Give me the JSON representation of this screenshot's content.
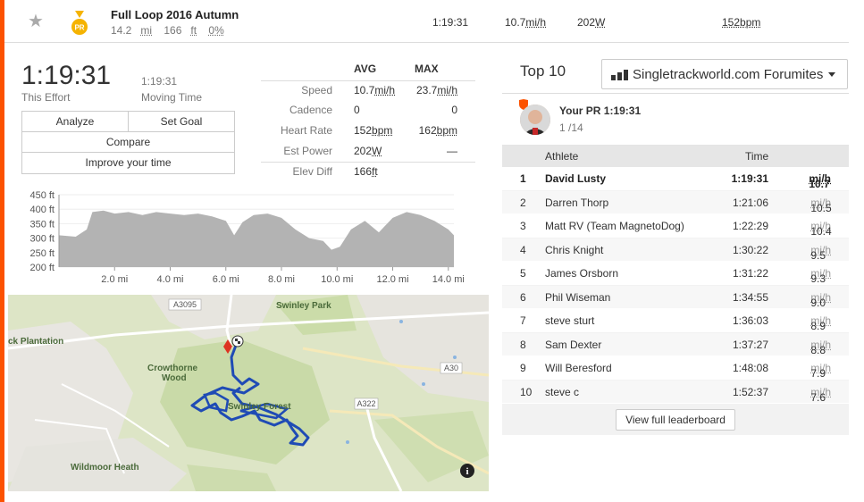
{
  "colors": {
    "accent": "#fc5200",
    "route": "#1f4bb5",
    "elevation": "#b3b3b3",
    "pr_medal": "#f5b301"
  },
  "header": {
    "segment_name": "Full Loop 2016 Autumn",
    "distance": "14.2",
    "distance_unit": "mi",
    "elevation": "166",
    "elevation_unit": "ft",
    "grade": "0%",
    "time": "1:19:31",
    "speed": "10.7",
    "speed_unit": "mi/h",
    "power": "202",
    "power_unit": "W",
    "heartrate": "152bpm",
    "medal_text": "PR",
    "star_icon": "star-icon"
  },
  "effort": {
    "elapsed_time": "1:19:31",
    "elapsed_label": "This Effort",
    "moving_time": "1:19:31",
    "moving_label": "Moving Time"
  },
  "buttons": {
    "analyze": "Analyze",
    "set_goal": "Set Goal",
    "compare": "Compare",
    "improve": "Improve your time"
  },
  "stats": {
    "avg_header": "AVG",
    "max_header": "MAX",
    "rows": [
      {
        "label": "Speed",
        "avg": "10.7",
        "avg_unit": "mi/h",
        "max": "23.7",
        "max_unit": "mi/h"
      },
      {
        "label": "Cadence",
        "avg": "0",
        "avg_unit": "",
        "max": "0",
        "max_unit": ""
      },
      {
        "label": "Heart Rate",
        "avg": "152",
        "avg_unit": "bpm",
        "max": "162",
        "max_unit": "bpm"
      },
      {
        "label": "Est Power",
        "avg": "202",
        "avg_unit": "W",
        "max": "—",
        "max_unit": ""
      },
      {
        "label": "Elev Diff",
        "avg": "166",
        "avg_unit": "ft",
        "max": "",
        "max_unit": ""
      }
    ]
  },
  "elevation_chart": {
    "y_ticks": [
      "450 ft",
      "400 ft",
      "350 ft",
      "300 ft",
      "250 ft",
      "200 ft"
    ],
    "x_ticks": [
      "2.0 mi",
      "4.0 mi",
      "6.0 mi",
      "8.0 mi",
      "10.0 mi",
      "12.0 mi",
      "14.0 mi"
    ]
  },
  "chart_data": {
    "type": "area",
    "xlabel": "",
    "ylabel": "",
    "xlim": [
      0,
      14.2
    ],
    "ylim": [
      200,
      450
    ],
    "x_tick_labels": [
      "2.0 mi",
      "4.0 mi",
      "6.0 mi",
      "8.0 mi",
      "10.0 mi",
      "12.0 mi",
      "14.0 mi"
    ],
    "y_tick_labels": [
      "200 ft",
      "250 ft",
      "300 ft",
      "350 ft",
      "400 ft",
      "450 ft"
    ],
    "x": [
      0,
      0.6,
      1.0,
      1.2,
      1.6,
      2.0,
      2.5,
      3.0,
      3.5,
      4.0,
      4.5,
      5.0,
      5.5,
      6.0,
      6.3,
      6.6,
      7.0,
      7.5,
      8.0,
      8.5,
      9.0,
      9.5,
      9.8,
      10.1,
      10.5,
      11.0,
      11.5,
      12.0,
      12.5,
      13.0,
      13.5,
      14.0,
      14.2
    ],
    "y": [
      310,
      305,
      330,
      390,
      395,
      385,
      390,
      380,
      390,
      385,
      380,
      385,
      375,
      360,
      310,
      355,
      380,
      385,
      370,
      330,
      300,
      290,
      260,
      270,
      330,
      360,
      320,
      370,
      390,
      380,
      360,
      330,
      310
    ]
  },
  "map": {
    "labels": [
      "A3095",
      "Swinley Park",
      "ck Plantation",
      "Crowthorne",
      "Wood",
      "A30",
      "A322",
      "Swinley Forest",
      "Wildmoor Heath"
    ],
    "info_icon": "info-icon"
  },
  "leaderboard": {
    "title": "Top 10",
    "club": "Singletrackworld.com Forumites",
    "pr_label": "Your PR 1:19:31",
    "pr_rank": "1 /14",
    "col_athlete": "Athlete",
    "col_time": "Time",
    "rows": [
      {
        "rank": "1",
        "name": "David Lusty",
        "time": "1:19:31",
        "speed": "10.7",
        "unit": "mi/h"
      },
      {
        "rank": "2",
        "name": "Darren Thorp",
        "time": "1:21:06",
        "speed": "10.5",
        "unit": "mi/h"
      },
      {
        "rank": "3",
        "name": "Matt RV (Team MagnetoDog)",
        "time": "1:22:29",
        "speed": "10.4",
        "unit": "mi/h"
      },
      {
        "rank": "4",
        "name": "Chris Knight",
        "time": "1:30:22",
        "speed": "9.5",
        "unit": "mi/h"
      },
      {
        "rank": "5",
        "name": "James Orsborn",
        "time": "1:31:22",
        "speed": "9.3",
        "unit": "mi/h"
      },
      {
        "rank": "6",
        "name": "Phil Wiseman",
        "time": "1:34:55",
        "speed": "9.0",
        "unit": "mi/h"
      },
      {
        "rank": "7",
        "name": "steve sturt",
        "time": "1:36:03",
        "speed": "8.9",
        "unit": "mi/h"
      },
      {
        "rank": "8",
        "name": "Sam Dexter",
        "time": "1:37:27",
        "speed": "8.8",
        "unit": "mi/h"
      },
      {
        "rank": "9",
        "name": "Will Beresford",
        "time": "1:48:08",
        "speed": "7.9",
        "unit": "mi/h"
      },
      {
        "rank": "10",
        "name": "steve c",
        "time": "1:52:37",
        "speed": "7.6",
        "unit": "mi/h"
      }
    ],
    "view_full": "View full leaderboard"
  }
}
